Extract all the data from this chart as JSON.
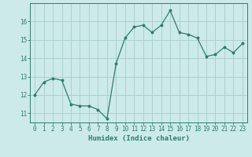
{
  "x": [
    0,
    1,
    2,
    3,
    4,
    5,
    6,
    7,
    8,
    9,
    10,
    11,
    12,
    13,
    14,
    15,
    16,
    17,
    18,
    19,
    20,
    21,
    22,
    23
  ],
  "y": [
    12.0,
    12.7,
    12.9,
    12.8,
    11.5,
    11.4,
    11.4,
    11.2,
    10.7,
    13.7,
    15.1,
    15.7,
    15.8,
    15.4,
    15.8,
    16.6,
    15.4,
    15.3,
    15.1,
    14.1,
    14.2,
    14.6,
    14.3,
    14.8
  ],
  "line_color": "#2d7d6e",
  "bg_color": "#cceaea",
  "grid_color": "#aacccc",
  "xlabel": "Humidex (Indice chaleur)",
  "ylim": [
    10.5,
    17.0
  ],
  "yticks": [
    11,
    12,
    13,
    14,
    15,
    16
  ],
  "xticks": [
    0,
    1,
    2,
    3,
    4,
    5,
    6,
    7,
    8,
    9,
    10,
    11,
    12,
    13,
    14,
    15,
    16,
    17,
    18,
    19,
    20,
    21,
    22,
    23
  ],
  "tick_fontsize": 5.5,
  "xlabel_fontsize": 6.5
}
